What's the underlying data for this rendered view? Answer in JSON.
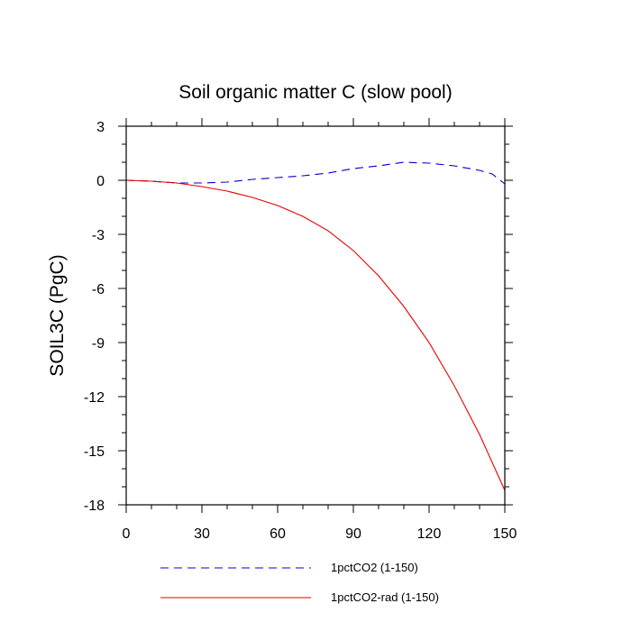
{
  "chart_data": {
    "type": "line",
    "title": "Soil organic matter C (slow pool)",
    "xlabel": "",
    "ylabel": "SOIL3C  (PgC)",
    "xlim": [
      0,
      150
    ],
    "ylim": [
      -18,
      3
    ],
    "xticks": [
      0,
      30,
      60,
      90,
      120,
      150
    ],
    "yticks": [
      3,
      0,
      -3,
      -6,
      -9,
      -12,
      -15,
      -18
    ],
    "grid": false,
    "legend_position": "bottom",
    "series": [
      {
        "name": "1pctCO2 (1-150)",
        "color": "#0000cc",
        "dash": "dashed",
        "x": [
          0,
          10,
          20,
          30,
          40,
          50,
          60,
          70,
          80,
          90,
          100,
          110,
          120,
          130,
          140,
          145,
          150
        ],
        "y": [
          0,
          -0.05,
          -0.15,
          -0.15,
          -0.1,
          0.05,
          0.15,
          0.25,
          0.4,
          0.65,
          0.8,
          1.0,
          0.95,
          0.8,
          0.55,
          0.35,
          -0.2
        ]
      },
      {
        "name": "1pctCO2-rad (1-150)",
        "color": "#e60000",
        "dash": "solid",
        "x": [
          0,
          10,
          20,
          30,
          40,
          50,
          60,
          70,
          80,
          90,
          100,
          110,
          120,
          130,
          140,
          150
        ],
        "y": [
          0,
          -0.05,
          -0.15,
          -0.35,
          -0.6,
          -0.95,
          -1.4,
          -2.0,
          -2.8,
          -3.9,
          -5.3,
          -7.0,
          -9.0,
          -11.4,
          -14.1,
          -17.2
        ]
      }
    ]
  }
}
